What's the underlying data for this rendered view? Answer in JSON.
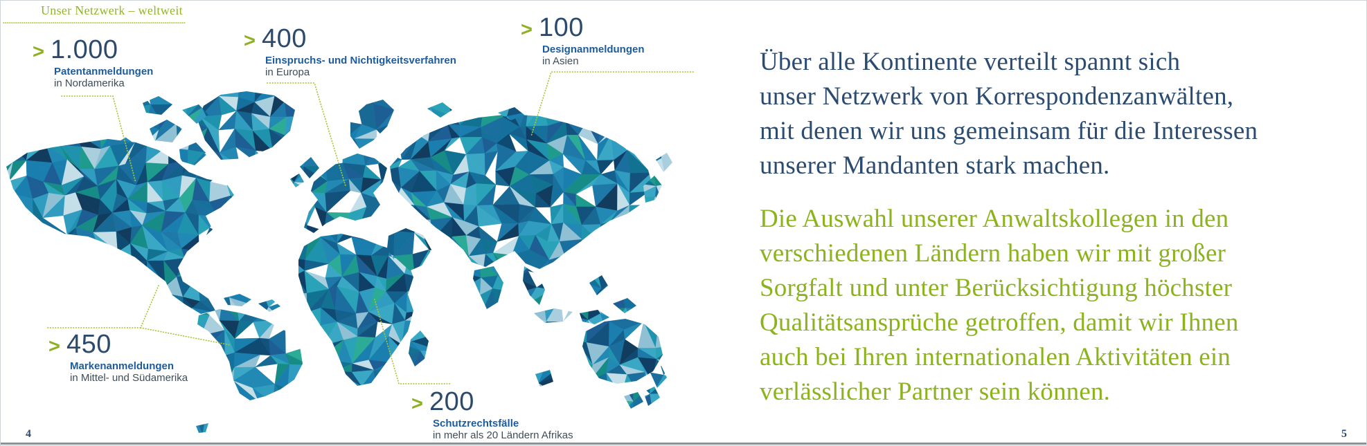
{
  "header": {
    "title": "Unser Netzwerk – weltweit"
  },
  "stats": [
    {
      "prefix": ">",
      "value": "1.000",
      "label": "Patentanmeldungen",
      "region": "in Nordamerika"
    },
    {
      "prefix": ">",
      "value": "400",
      "label": "Einspruchs- und Nichtigkeitsverfahren",
      "region": "in Europa"
    },
    {
      "prefix": ">",
      "value": "100",
      "label": "Designanmeldungen",
      "region": "in Asien"
    },
    {
      "prefix": ">",
      "value": "450",
      "label": "Markenanmeldungen",
      "region": "in Mittel- und Südamerika"
    },
    {
      "prefix": ">",
      "value": "200",
      "label": "Schutzrechtsfälle",
      "region": "in mehr als 20 Ländern Afrikas"
    }
  ],
  "body": {
    "blue_lines": [
      "Über alle Kontinente verteilt spannt sich",
      "unser Netzwerk von Korrespondenzanwälten,",
      "mit denen wir uns gemeinsam für die Interessen",
      "unserer Mandanten stark machen."
    ],
    "green_lines": [
      "Die Auswahl unserer Anwaltskollegen in den",
      "verschiedenen Ländern haben wir mit großer",
      "Sorgfalt und unter Berücksichtigung höchster",
      "Qualitätsansprüche getroffen, damit wir Ihnen",
      "auch bei Ihren internationalen Aktivitäten ein",
      "verlässlicher Partner sein können."
    ]
  },
  "footer": {
    "left_page_number": "4",
    "right_page_number": "5"
  },
  "colors": {
    "accent_green": "#94b325",
    "leader_green": "#aec437",
    "text_blue": "#2c4b70",
    "text_green": "#8cb31e",
    "label_blue": "#1c5c9e",
    "number_blue": "#2b4a6e",
    "map_blue": "#1b6f9f"
  }
}
